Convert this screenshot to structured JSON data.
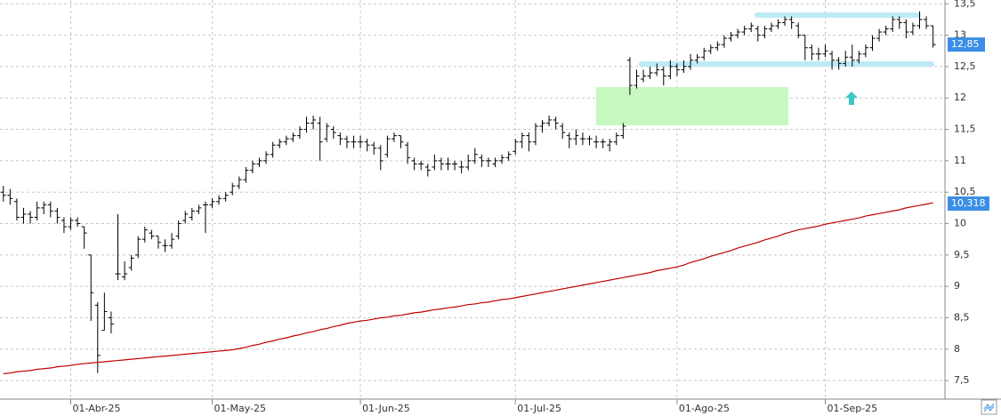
{
  "chart_data": {
    "type": "ohlc",
    "ylim": [
      7.29,
      13.56
    ],
    "yticks": [
      {
        "value": 7.5,
        "label": "7,5"
      },
      8,
      {
        "value": 8.5,
        "label": "8,5"
      },
      9,
      {
        "value": 9.5,
        "label": "9,5"
      },
      10,
      {
        "value": 10.5,
        "label": "10,5"
      },
      11,
      {
        "value": 11.5,
        "label": "11,5"
      },
      12,
      {
        "value": 12.5,
        "label": "12,5"
      },
      13,
      {
        "value": 13.5,
        "label": "13,5"
      }
    ],
    "grid": true,
    "categories": [
      null,
      null,
      null,
      null,
      null,
      null,
      null,
      null,
      null,
      null,
      "01-Abr-25",
      null,
      null,
      null,
      null,
      null,
      null,
      null,
      null,
      null,
      null,
      null,
      null,
      null,
      null,
      null,
      null,
      null,
      null,
      null,
      null,
      "01-May-25",
      null,
      null,
      null,
      null,
      null,
      null,
      null,
      null,
      null,
      null,
      null,
      null,
      null,
      null,
      null,
      null,
      null,
      null,
      null,
      null,
      null,
      "01-Jun-25",
      null,
      null,
      null,
      null,
      null,
      null,
      null,
      null,
      null,
      null,
      null,
      null,
      null,
      null,
      null,
      null,
      null,
      null,
      null,
      null,
      null,
      null,
      "01-Jul-25",
      null,
      null,
      null,
      null,
      null,
      null,
      null,
      null,
      null,
      null,
      null,
      null,
      null,
      null,
      null,
      null,
      null,
      null,
      null,
      null,
      null,
      null,
      null,
      "01-Ago-25",
      null,
      null,
      null,
      null,
      null,
      null,
      null,
      null,
      null,
      null,
      null,
      null,
      null,
      null,
      null,
      null,
      null,
      null,
      null,
      null,
      null,
      "01-Sep-25",
      null,
      null,
      null,
      null,
      null,
      null,
      null,
      null,
      null,
      null,
      null,
      null,
      null,
      null,
      null,
      null
    ],
    "color": "#000000",
    "ohlc": [
      [
        10.5,
        10.6,
        10.35,
        10.45
      ],
      [
        10.45,
        10.55,
        10.3,
        10.4
      ],
      [
        10.35,
        10.4,
        10.05,
        10.1
      ],
      [
        10.1,
        10.25,
        10.0,
        10.15
      ],
      [
        10.15,
        10.2,
        10.0,
        10.1
      ],
      [
        10.1,
        10.35,
        10.05,
        10.25
      ],
      [
        10.25,
        10.35,
        10.15,
        10.3
      ],
      [
        10.3,
        10.35,
        10.1,
        10.2
      ],
      [
        10.2,
        10.25,
        10.0,
        10.1
      ],
      [
        10.05,
        10.1,
        9.85,
        9.95
      ],
      [
        9.95,
        10.1,
        9.9,
        10.05
      ],
      [
        10.05,
        10.1,
        9.95,
        10.0
      ],
      [
        9.95,
        9.95,
        9.6,
        9.85
      ],
      [
        9.5,
        9.5,
        8.45,
        8.9
      ],
      [
        8.7,
        8.75,
        7.62,
        7.9
      ],
      [
        8.3,
        8.9,
        8.3,
        8.6
      ],
      [
        8.5,
        8.6,
        8.25,
        8.4
      ],
      [
        9.2,
        10.15,
        9.1,
        9.2
      ],
      [
        9.15,
        9.4,
        9.1,
        9.2
      ],
      [
        9.3,
        9.5,
        9.25,
        9.45
      ],
      [
        9.5,
        9.8,
        9.45,
        9.75
      ],
      [
        9.75,
        9.95,
        9.7,
        9.9
      ],
      [
        9.85,
        9.9,
        9.75,
        9.8
      ],
      [
        9.8,
        9.8,
        9.6,
        9.7
      ],
      [
        9.65,
        9.75,
        9.55,
        9.65
      ],
      [
        9.65,
        9.85,
        9.6,
        9.75
      ],
      [
        9.8,
        10.05,
        9.75,
        10.0
      ],
      [
        10.05,
        10.2,
        10.0,
        10.15
      ],
      [
        10.1,
        10.25,
        10.05,
        10.2
      ],
      [
        10.2,
        10.3,
        10.15,
        10.25
      ],
      [
        10.3,
        10.35,
        9.85,
        10.3
      ],
      [
        10.3,
        10.4,
        10.25,
        10.35
      ],
      [
        10.35,
        10.45,
        10.3,
        10.4
      ],
      [
        10.4,
        10.5,
        10.35,
        10.45
      ],
      [
        10.5,
        10.65,
        10.45,
        10.6
      ],
      [
        10.6,
        10.75,
        10.55,
        10.7
      ],
      [
        10.7,
        10.9,
        10.65,
        10.85
      ],
      [
        10.85,
        11.0,
        10.8,
        10.95
      ],
      [
        10.95,
        11.05,
        10.9,
        11.0
      ],
      [
        11.0,
        11.15,
        10.95,
        11.1
      ],
      [
        11.1,
        11.3,
        11.05,
        11.25
      ],
      [
        11.25,
        11.35,
        11.2,
        11.3
      ],
      [
        11.3,
        11.4,
        11.25,
        11.35
      ],
      [
        11.35,
        11.45,
        11.3,
        11.4
      ],
      [
        11.4,
        11.55,
        11.35,
        11.5
      ],
      [
        11.5,
        11.7,
        11.45,
        11.6
      ],
      [
        11.6,
        11.72,
        11.5,
        11.65
      ],
      [
        11.6,
        11.7,
        11.0,
        11.3
      ],
      [
        11.35,
        11.6,
        11.3,
        11.55
      ],
      [
        11.5,
        11.55,
        11.35,
        11.45
      ],
      [
        11.4,
        11.45,
        11.25,
        11.35
      ],
      [
        11.35,
        11.4,
        11.2,
        11.3
      ],
      [
        11.3,
        11.4,
        11.2,
        11.3
      ],
      [
        11.3,
        11.4,
        11.2,
        11.3
      ],
      [
        11.3,
        11.35,
        11.15,
        11.25
      ],
      [
        11.25,
        11.3,
        11.1,
        11.2
      ],
      [
        11.2,
        11.25,
        10.85,
        11.0
      ],
      [
        11.1,
        11.4,
        11.05,
        11.35
      ],
      [
        11.35,
        11.45,
        11.3,
        11.4
      ],
      [
        11.4,
        11.4,
        11.2,
        11.3
      ],
      [
        11.25,
        11.3,
        10.95,
        11.05
      ],
      [
        11.0,
        11.05,
        10.85,
        10.95
      ],
      [
        10.95,
        11.0,
        10.85,
        10.95
      ],
      [
        10.9,
        10.95,
        10.75,
        10.85
      ],
      [
        10.9,
        11.1,
        10.85,
        11.0
      ],
      [
        11.0,
        11.05,
        10.85,
        10.95
      ],
      [
        10.95,
        11.05,
        10.85,
        10.95
      ],
      [
        10.95,
        11.0,
        10.85,
        10.95
      ],
      [
        10.9,
        11.0,
        10.8,
        10.9
      ],
      [
        10.9,
        11.1,
        10.85,
        11.0
      ],
      [
        11.0,
        11.2,
        10.95,
        11.1
      ],
      [
        11.05,
        11.1,
        10.9,
        11.0
      ],
      [
        11.0,
        11.05,
        10.9,
        11.0
      ],
      [
        10.95,
        11.05,
        10.9,
        11.0
      ],
      [
        11.0,
        11.1,
        10.95,
        11.05
      ],
      [
        11.05,
        11.15,
        11.0,
        11.1
      ],
      [
        11.15,
        11.35,
        11.1,
        11.3
      ],
      [
        11.3,
        11.45,
        11.2,
        11.4
      ],
      [
        11.4,
        11.45,
        11.15,
        11.3
      ],
      [
        11.3,
        11.6,
        11.25,
        11.55
      ],
      [
        11.55,
        11.65,
        11.45,
        11.6
      ],
      [
        11.6,
        11.72,
        11.55,
        11.65
      ],
      [
        11.65,
        11.7,
        11.5,
        11.6
      ],
      [
        11.55,
        11.6,
        11.35,
        11.45
      ],
      [
        11.4,
        11.45,
        11.2,
        11.35
      ],
      [
        11.35,
        11.5,
        11.25,
        11.4
      ],
      [
        11.35,
        11.45,
        11.25,
        11.35
      ],
      [
        11.35,
        11.4,
        11.25,
        11.35
      ],
      [
        11.3,
        11.4,
        11.2,
        11.3
      ],
      [
        11.3,
        11.35,
        11.2,
        11.3
      ],
      [
        11.25,
        11.35,
        11.15,
        11.3
      ],
      [
        11.3,
        11.45,
        11.25,
        11.4
      ],
      [
        11.4,
        11.6,
        11.35,
        11.55
      ],
      [
        12.6,
        12.65,
        12.05,
        12.2
      ],
      [
        12.2,
        12.45,
        12.15,
        12.35
      ],
      [
        12.3,
        12.45,
        12.25,
        12.35
      ],
      [
        12.35,
        12.5,
        12.3,
        12.4
      ],
      [
        12.4,
        12.55,
        12.35,
        12.45
      ],
      [
        12.45,
        12.5,
        12.2,
        12.35
      ],
      [
        12.35,
        12.6,
        12.3,
        12.5
      ],
      [
        12.5,
        12.55,
        12.35,
        12.45
      ],
      [
        12.45,
        12.6,
        12.4,
        12.5
      ],
      [
        12.5,
        12.7,
        12.45,
        12.6
      ],
      [
        12.6,
        12.7,
        12.55,
        12.65
      ],
      [
        12.65,
        12.8,
        12.6,
        12.75
      ],
      [
        12.75,
        12.85,
        12.7,
        12.8
      ],
      [
        12.8,
        12.9,
        12.75,
        12.85
      ],
      [
        12.85,
        13.0,
        12.8,
        12.95
      ],
      [
        12.95,
        13.05,
        12.9,
        13.0
      ],
      [
        13.0,
        13.1,
        12.95,
        13.05
      ],
      [
        13.05,
        13.15,
        13.0,
        13.1
      ],
      [
        13.1,
        13.2,
        13.05,
        13.15
      ],
      [
        13.1,
        13.15,
        12.9,
        13.0
      ],
      [
        13.0,
        13.15,
        12.95,
        13.1
      ],
      [
        13.1,
        13.2,
        13.05,
        13.15
      ],
      [
        13.15,
        13.25,
        13.1,
        13.2
      ],
      [
        13.2,
        13.3,
        13.15,
        13.25
      ],
      [
        13.25,
        13.3,
        13.1,
        13.2
      ],
      [
        13.15,
        13.2,
        12.95,
        13.0
      ],
      [
        13.0,
        13.0,
        12.6,
        12.8
      ],
      [
        12.8,
        12.85,
        12.6,
        12.7
      ],
      [
        12.7,
        12.8,
        12.6,
        12.7
      ],
      [
        12.7,
        12.85,
        12.65,
        12.75
      ],
      [
        12.7,
        12.75,
        12.45,
        12.6
      ],
      [
        12.6,
        12.65,
        12.45,
        12.55
      ],
      [
        12.55,
        12.75,
        12.5,
        12.65
      ],
      [
        12.65,
        12.85,
        12.5,
        12.6
      ],
      [
        12.6,
        12.75,
        12.55,
        12.7
      ],
      [
        12.7,
        12.85,
        12.65,
        12.8
      ],
      [
        12.8,
        13.0,
        12.75,
        12.95
      ],
      [
        12.95,
        13.1,
        12.9,
        13.05
      ],
      [
        13.05,
        13.15,
        13.0,
        13.1
      ],
      [
        13.1,
        13.3,
        13.05,
        13.25
      ],
      [
        13.25,
        13.3,
        13.1,
        13.2
      ],
      [
        13.2,
        13.25,
        12.95,
        13.05
      ],
      [
        13.05,
        13.2,
        13.0,
        13.15
      ],
      [
        13.15,
        13.38,
        13.1,
        13.25
      ],
      [
        13.25,
        13.3,
        13.1,
        13.15
      ],
      [
        13.15,
        13.15,
        12.8,
        12.85
      ]
    ],
    "ma": {
      "color": "#c00000",
      "values": [
        7.61,
        7.62,
        7.64,
        7.65,
        7.66,
        7.68,
        7.69,
        7.7,
        7.72,
        7.73,
        7.74,
        7.76,
        7.77,
        7.78,
        7.79,
        7.8,
        7.81,
        7.82,
        7.83,
        7.84,
        7.85,
        7.86,
        7.87,
        7.88,
        7.89,
        7.9,
        7.91,
        7.92,
        7.93,
        7.94,
        7.95,
        7.96,
        7.97,
        7.98,
        7.99,
        8.01,
        8.03,
        8.06,
        8.08,
        8.11,
        8.13,
        8.16,
        8.18,
        8.21,
        8.23,
        8.26,
        8.28,
        8.31,
        8.33,
        8.36,
        8.38,
        8.41,
        8.43,
        8.45,
        8.46,
        8.48,
        8.5,
        8.51,
        8.53,
        8.54,
        8.56,
        8.58,
        8.59,
        8.61,
        8.63,
        8.64,
        8.66,
        8.67,
        8.69,
        8.71,
        8.72,
        8.74,
        8.75,
        8.77,
        8.79,
        8.8,
        8.82,
        8.84,
        8.86,
        8.88,
        8.9,
        8.92,
        8.94,
        8.96,
        8.98,
        9.0,
        9.02,
        9.04,
        9.06,
        9.08,
        9.1,
        9.12,
        9.14,
        9.16,
        9.18,
        9.2,
        9.22,
        9.25,
        9.27,
        9.29,
        9.31,
        9.34,
        9.38,
        9.41,
        9.44,
        9.48,
        9.51,
        9.54,
        9.57,
        9.61,
        9.64,
        9.67,
        9.7,
        9.74,
        9.77,
        9.8,
        9.84,
        9.87,
        9.9,
        9.92,
        9.94,
        9.96,
        9.99,
        10.01,
        10.03,
        10.05,
        10.07,
        10.09,
        10.12,
        10.14,
        10.16,
        10.18,
        10.2,
        10.22,
        10.25,
        10.27,
        10.29,
        10.31,
        10.33
      ]
    },
    "price_label": {
      "value": 12.85,
      "label": "12,85",
      "color": "#3a8ee6"
    },
    "ma_label": {
      "value": 10.318,
      "label": "10,318",
      "color": "#3a8ee6"
    }
  }
}
